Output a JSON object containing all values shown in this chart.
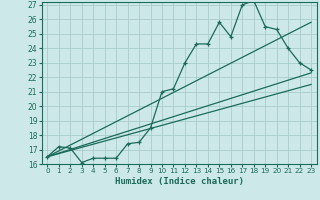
{
  "xlabel": "Humidex (Indice chaleur)",
  "bg_color": "#cde8e8",
  "grid_color": "#a8cccc",
  "line_color": "#1a6b5a",
  "xlim": [
    -0.5,
    23.5
  ],
  "ylim": [
    16,
    27.2
  ],
  "yticks": [
    16,
    17,
    18,
    19,
    20,
    21,
    22,
    23,
    24,
    25,
    26,
    27
  ],
  "xticks": [
    0,
    1,
    2,
    3,
    4,
    5,
    6,
    7,
    8,
    9,
    10,
    11,
    12,
    13,
    14,
    15,
    16,
    17,
    18,
    19,
    20,
    21,
    22,
    23
  ],
  "series1_x": [
    0,
    1,
    2,
    3,
    4,
    5,
    6,
    7,
    8,
    9,
    10,
    11,
    12,
    13,
    14,
    15,
    16,
    17,
    18,
    19,
    20,
    21,
    22,
    23
  ],
  "series1_y": [
    16.5,
    17.2,
    17.1,
    16.1,
    16.4,
    16.4,
    16.4,
    17.4,
    17.5,
    18.5,
    21.0,
    21.2,
    23.0,
    24.3,
    24.3,
    25.8,
    24.8,
    27.0,
    27.3,
    25.5,
    25.3,
    24.0,
    23.0,
    22.5
  ],
  "line1_x": [
    0,
    23
  ],
  "line1_y": [
    16.5,
    22.3
  ],
  "line2_x": [
    0,
    23
  ],
  "line2_y": [
    16.5,
    25.8
  ],
  "line3_x": [
    0,
    23
  ],
  "line3_y": [
    16.5,
    21.5
  ]
}
